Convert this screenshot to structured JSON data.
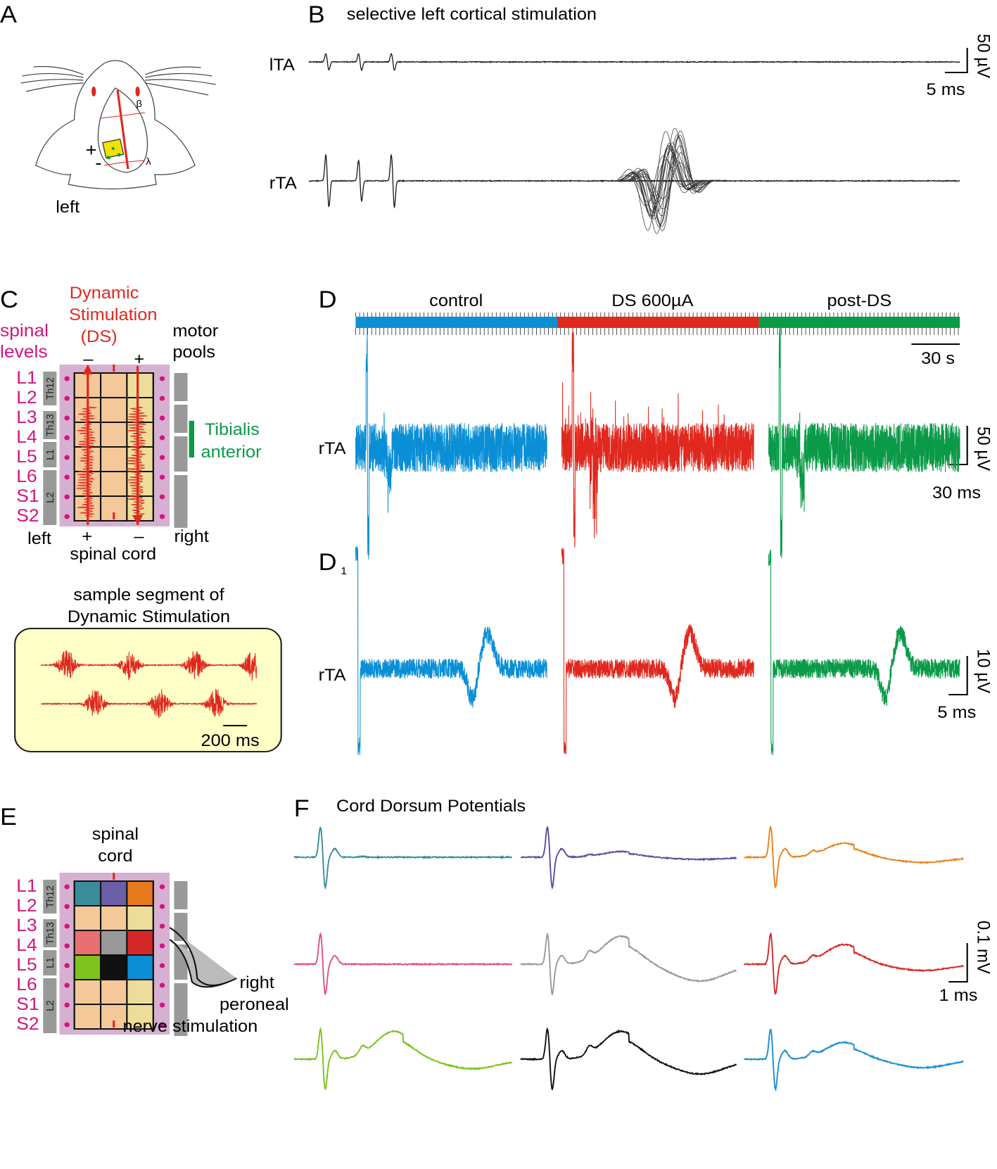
{
  "panel_a": {
    "letter": "A",
    "plus": "+",
    "minus": "-",
    "beta": "β",
    "lambda": "λ",
    "side": "left"
  },
  "panel_b": {
    "letter": "B",
    "title": "selective left cortical stimulation",
    "trace_top": "lTA",
    "trace_bottom": "rTA",
    "scale_v": "50 µV",
    "scale_h": "5 ms"
  },
  "panel_c": {
    "letter": "C",
    "ds": [
      "Dynamic",
      "Stimulation",
      "(DS)"
    ],
    "levels_heading": [
      "spinal",
      "levels"
    ],
    "pools_heading": [
      "motor",
      "pools"
    ],
    "levels": [
      "L1",
      "L2",
      "L3",
      "L4",
      "L5",
      "L6",
      "S1",
      "S2"
    ],
    "vertebrae": [
      "Th12",
      "Th13",
      "L1",
      "L2"
    ],
    "top_polarity": [
      "–",
      "+"
    ],
    "bottom_polarity": [
      "+",
      "–"
    ],
    "muscle": [
      "Tibialis",
      "anterior"
    ],
    "left": "left",
    "right": "right",
    "cord": "spinal cord",
    "sample_title": [
      "sample segment of",
      "Dynamic Stimulation"
    ],
    "sample_scale": "200 ms"
  },
  "panel_d": {
    "letter": "D",
    "epochs": [
      "control",
      "DS 600µA",
      "post-DS"
    ],
    "time_scale": "30 s",
    "trace": "rTA",
    "scale_v": "50 µV",
    "scale_h": "30 ms"
  },
  "panel_d1": {
    "letter": "D",
    "subscript": "1",
    "trace": "rTA",
    "scale_v": "10 µV",
    "scale_h": "5 ms"
  },
  "panel_e": {
    "letter": "E",
    "cord": [
      "spinal",
      "cord"
    ],
    "levels": [
      "L1",
      "L2",
      "L3",
      "L4",
      "L5",
      "L6",
      "S1",
      "S2"
    ],
    "vertebrae": [
      "Th12",
      "Th13",
      "L1",
      "L2"
    ],
    "nerve": [
      "right",
      "peroneal",
      "nerve stimulation"
    ]
  },
  "panel_f": {
    "letter": "F",
    "title": "Cord Dorsum Potentials",
    "scale_v": "0.1 mV",
    "scale_h": "1 ms"
  }
}
